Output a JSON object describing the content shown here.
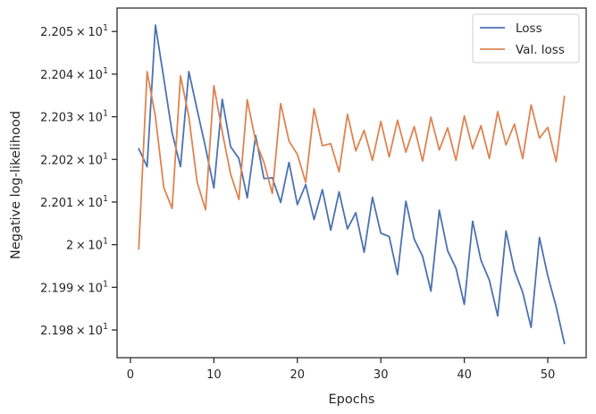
{
  "chart_data": {
    "type": "line",
    "xlabel": "Epochs",
    "ylabel": "Negative log-likelihood",
    "xlim": [
      -1.6,
      54.6
    ],
    "ylim": [
      21.9735,
      22.0555
    ],
    "x_ticks": [
      0,
      10,
      20,
      30,
      40,
      50
    ],
    "x_tick_labels": [
      "0",
      "10",
      "20",
      "30",
      "40",
      "50"
    ],
    "y_ticks": [
      21.98,
      21.99,
      22.0,
      22.01,
      22.02,
      22.03,
      22.04,
      22.05
    ],
    "y_tick_labels": [
      {
        "mantissa": "2.198",
        "base": "10",
        "exp": "1"
      },
      {
        "mantissa": "2.199",
        "base": "10",
        "exp": "1"
      },
      {
        "mantissa": "2",
        "base": "10",
        "exp": "1"
      },
      {
        "mantissa": "2.201",
        "base": "10",
        "exp": "1"
      },
      {
        "mantissa": "2.202",
        "base": "10",
        "exp": "1"
      },
      {
        "mantissa": "2.203",
        "base": "10",
        "exp": "1"
      },
      {
        "mantissa": "2.204",
        "base": "10",
        "exp": "1"
      },
      {
        "mantissa": "2.205",
        "base": "10",
        "exp": "1"
      }
    ],
    "legend_position": "top-right",
    "x": [
      1,
      2,
      3,
      4,
      5,
      6,
      7,
      8,
      9,
      10,
      11,
      12,
      13,
      14,
      15,
      16,
      17,
      18,
      19,
      20,
      21,
      22,
      23,
      24,
      25,
      26,
      27,
      28,
      29,
      30,
      31,
      32,
      33,
      34,
      35,
      36,
      37,
      38,
      39,
      40,
      41,
      42,
      43,
      44,
      45,
      46,
      47,
      48,
      49,
      50,
      51,
      52
    ],
    "series": [
      {
        "name": "Loss",
        "color": "#4c72b0",
        "values": [
          22.0225,
          22.0183,
          22.0515,
          22.039,
          22.0262,
          22.0183,
          22.0406,
          22.0316,
          22.0228,
          22.0133,
          22.0341,
          22.023,
          22.0202,
          22.011,
          22.0256,
          22.0155,
          22.0157,
          22.0099,
          22.0193,
          22.0094,
          22.0141,
          22.0059,
          22.0129,
          22.0034,
          22.0124,
          22.0037,
          22.0075,
          21.9982,
          22.0111,
          22.0027,
          22.0019,
          21.993,
          22.0102,
          22.0013,
          21.9973,
          21.9891,
          22.0081,
          21.9986,
          21.9945,
          21.986,
          22.0055,
          21.9963,
          21.9917,
          21.9833,
          22.0032,
          21.994,
          21.9888,
          21.9806,
          22.0017,
          21.9927,
          21.9855,
          21.9768
        ]
      },
      {
        "name": "Val. loss",
        "color": "#dd8452",
        "values": [
          21.999,
          22.0406,
          22.03,
          22.0134,
          22.0085,
          22.0396,
          22.03,
          22.0146,
          22.0082,
          22.0373,
          22.0265,
          22.0166,
          22.0106,
          22.034,
          22.0243,
          22.0193,
          22.012,
          22.0331,
          22.0243,
          22.0212,
          22.0146,
          22.0319,
          22.0232,
          22.0237,
          22.0171,
          22.0306,
          22.022,
          22.0268,
          22.0198,
          22.0289,
          22.0206,
          22.0292,
          22.0217,
          22.0277,
          22.0196,
          22.0299,
          22.0222,
          22.0274,
          22.0198,
          22.0302,
          22.0225,
          22.0279,
          22.0202,
          22.0312,
          22.0234,
          22.0283,
          22.0202,
          22.0328,
          22.025,
          22.0275,
          22.0195,
          22.0348
        ]
      }
    ]
  }
}
